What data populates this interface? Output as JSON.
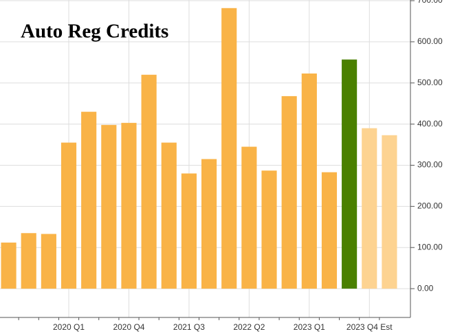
{
  "chart_data": {
    "type": "bar",
    "title": "Auto Reg Credits",
    "categories": [
      null,
      null,
      null,
      "2020 Q1",
      null,
      null,
      "2020 Q4",
      null,
      null,
      "2021 Q3",
      null,
      null,
      "2022 Q2",
      null,
      null,
      "2023 Q1",
      null,
      null,
      "2023 Q4 Est",
      null
    ],
    "values": [
      112,
      135,
      133,
      355,
      430,
      398,
      403,
      520,
      355,
      280,
      315,
      682,
      345,
      287,
      468,
      523,
      283,
      557,
      390,
      373
    ],
    "colors": [
      "#f9b347",
      "#f9b347",
      "#f9b347",
      "#f9b347",
      "#f9b347",
      "#f9b347",
      "#f9b347",
      "#f9b347",
      "#f9b347",
      "#f9b347",
      "#f9b347",
      "#f9b347",
      "#f9b347",
      "#f9b347",
      "#f9b347",
      "#f9b347",
      "#f9b347",
      "#4a8000",
      "#fdd391",
      "#fdd391"
    ],
    "ylim": [
      -70,
      700
    ],
    "yticks": [
      {
        "value": 0,
        "label": "0.00"
      },
      {
        "value": 100,
        "label": "100.00"
      },
      {
        "value": 200,
        "label": "200.00"
      },
      {
        "value": 300,
        "label": "300.00"
      },
      {
        "value": 400,
        "label": "400.00"
      },
      {
        "value": 500,
        "label": "500.00"
      },
      {
        "value": 600,
        "label": "600.00"
      },
      {
        "value": 700,
        "label": "700.00"
      }
    ],
    "grid": true,
    "y_axis_side": "right"
  }
}
